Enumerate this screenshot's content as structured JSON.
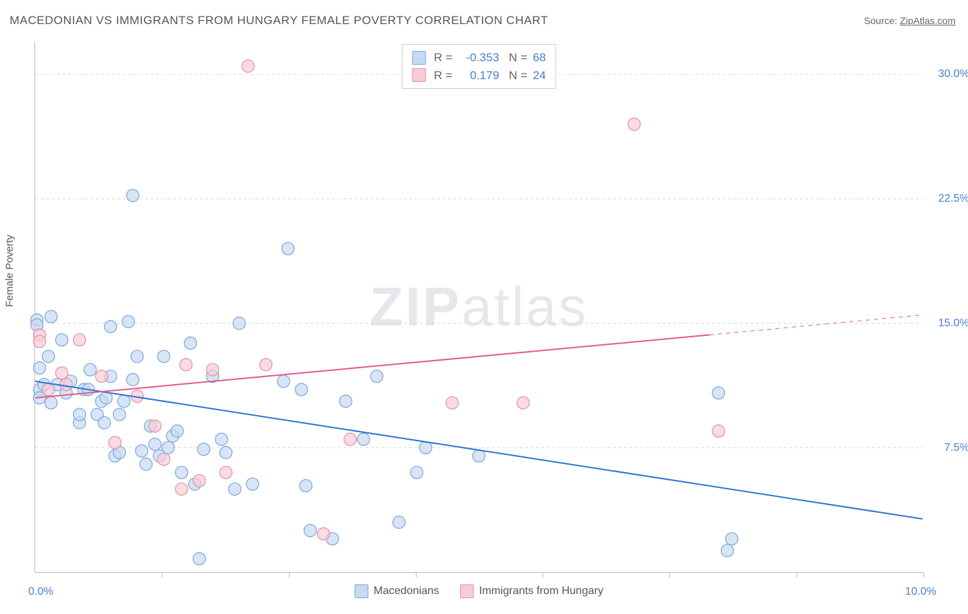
{
  "title": "MACEDONIAN VS IMMIGRANTS FROM HUNGARY FEMALE POVERTY CORRELATION CHART",
  "source_label": "Source:",
  "source_value": "ZipAtlas.com",
  "y_axis_label": "Female Poverty",
  "watermark": "ZIPatlas",
  "chart": {
    "type": "scatter",
    "xlim": [
      0,
      10
    ],
    "ylim": [
      0,
      32
    ],
    "y_ticks": [
      7.5,
      15.0,
      22.5,
      30.0
    ],
    "y_tick_labels": [
      "7.5%",
      "15.0%",
      "22.5%",
      "30.0%"
    ],
    "x_ticks": [
      0,
      1.43,
      2.86,
      4.29,
      5.71,
      7.14,
      8.57,
      10.0
    ],
    "x_tick_labels_shown": {
      "0": "0.0%",
      "10": "10.0%"
    },
    "background_color": "#ffffff",
    "grid_color": "#d5d5d5",
    "axis_color": "#bbbbbb",
    "tick_label_color": "#4a7dd0",
    "marker_radius": 9,
    "marker_stroke_width": 1.2,
    "series": [
      {
        "name": "Macedonians",
        "fill": "#c6daf3",
        "stroke": "#7ba5db",
        "fill_opacity": 0.7,
        "r": -0.353,
        "n": 68,
        "trend": {
          "x1": 0,
          "y1": 11.5,
          "x2": 10,
          "y2": 3.2,
          "color": "#2f74d0",
          "width": 2,
          "x_solid_end": 10
        },
        "points": [
          [
            0.02,
            15.2
          ],
          [
            0.02,
            14.9
          ],
          [
            0.05,
            12.3
          ],
          [
            0.05,
            11.0
          ],
          [
            0.05,
            10.5
          ],
          [
            0.1,
            11.3
          ],
          [
            0.15,
            13.0
          ],
          [
            0.18,
            10.2
          ],
          [
            0.18,
            15.4
          ],
          [
            0.25,
            11.3
          ],
          [
            0.3,
            14.0
          ],
          [
            0.35,
            10.8
          ],
          [
            0.4,
            11.5
          ],
          [
            0.5,
            9.0
          ],
          [
            0.5,
            9.5
          ],
          [
            0.55,
            11.0
          ],
          [
            0.6,
            11.0
          ],
          [
            0.62,
            12.2
          ],
          [
            0.7,
            9.5
          ],
          [
            0.75,
            10.3
          ],
          [
            0.78,
            9.0
          ],
          [
            0.8,
            10.5
          ],
          [
            0.85,
            14.8
          ],
          [
            0.85,
            11.8
          ],
          [
            0.9,
            7.0
          ],
          [
            0.95,
            9.5
          ],
          [
            0.95,
            7.2
          ],
          [
            1.0,
            10.3
          ],
          [
            1.05,
            15.1
          ],
          [
            1.1,
            11.6
          ],
          [
            1.1,
            22.7
          ],
          [
            1.15,
            13.0
          ],
          [
            1.2,
            7.3
          ],
          [
            1.25,
            6.5
          ],
          [
            1.3,
            8.8
          ],
          [
            1.35,
            7.7
          ],
          [
            1.4,
            7.0
          ],
          [
            1.45,
            13.0
          ],
          [
            1.5,
            7.5
          ],
          [
            1.55,
            8.2
          ],
          [
            1.6,
            8.5
          ],
          [
            1.65,
            6.0
          ],
          [
            1.75,
            13.8
          ],
          [
            1.8,
            5.3
          ],
          [
            1.85,
            0.8
          ],
          [
            1.9,
            7.4
          ],
          [
            2.0,
            11.8
          ],
          [
            2.1,
            8.0
          ],
          [
            2.15,
            7.2
          ],
          [
            2.25,
            5.0
          ],
          [
            2.3,
            15.0
          ],
          [
            2.45,
            5.3
          ],
          [
            2.8,
            11.5
          ],
          [
            2.85,
            19.5
          ],
          [
            3.0,
            11.0
          ],
          [
            3.05,
            5.2
          ],
          [
            3.1,
            2.5
          ],
          [
            3.35,
            2.0
          ],
          [
            3.5,
            10.3
          ],
          [
            3.7,
            8.0
          ],
          [
            3.85,
            11.8
          ],
          [
            4.1,
            3.0
          ],
          [
            4.3,
            6.0
          ],
          [
            4.4,
            7.5
          ],
          [
            5.0,
            7.0
          ],
          [
            7.7,
            10.8
          ],
          [
            7.8,
            1.3
          ],
          [
            7.85,
            2.0
          ]
        ]
      },
      {
        "name": "Immigrants from Hungary",
        "fill": "#f6ccd6",
        "stroke": "#e68fa6",
        "fill_opacity": 0.7,
        "r": 0.179,
        "n": 24,
        "trend": {
          "x1": 0,
          "y1": 10.5,
          "x2": 10,
          "y2": 15.5,
          "color": "#e35a87",
          "width": 2,
          "x_solid_end": 7.6
        },
        "points": [
          [
            0.05,
            14.3
          ],
          [
            0.05,
            13.9
          ],
          [
            0.15,
            11.0
          ],
          [
            0.3,
            12.0
          ],
          [
            0.35,
            11.3
          ],
          [
            0.5,
            14.0
          ],
          [
            0.75,
            11.8
          ],
          [
            0.9,
            7.8
          ],
          [
            1.15,
            10.6
          ],
          [
            1.35,
            8.8
          ],
          [
            1.45,
            6.8
          ],
          [
            1.65,
            5.0
          ],
          [
            1.7,
            12.5
          ],
          [
            1.85,
            5.5
          ],
          [
            2.0,
            12.2
          ],
          [
            2.15,
            6.0
          ],
          [
            2.4,
            30.5
          ],
          [
            2.6,
            12.5
          ],
          [
            3.25,
            2.3
          ],
          [
            3.55,
            8.0
          ],
          [
            4.7,
            10.2
          ],
          [
            5.5,
            10.2
          ],
          [
            6.75,
            27.0
          ],
          [
            7.7,
            8.5
          ]
        ]
      }
    ]
  },
  "legend_top": [
    {
      "swatch_fill": "#c6daf3",
      "swatch_stroke": "#7ba5db",
      "r_label": "R =",
      "r_value": "-0.353",
      "n_label": "N =",
      "n_value": "68"
    },
    {
      "swatch_fill": "#f6ccd6",
      "swatch_stroke": "#e68fa6",
      "r_label": "R =",
      "r_value": "0.179",
      "n_label": "N =",
      "n_value": "24"
    }
  ],
  "legend_bottom": [
    {
      "swatch_fill": "#c6daf3",
      "swatch_stroke": "#7ba5db",
      "label": "Macedonians"
    },
    {
      "swatch_fill": "#f6ccd6",
      "swatch_stroke": "#e68fa6",
      "label": "Immigrants from Hungary"
    }
  ]
}
